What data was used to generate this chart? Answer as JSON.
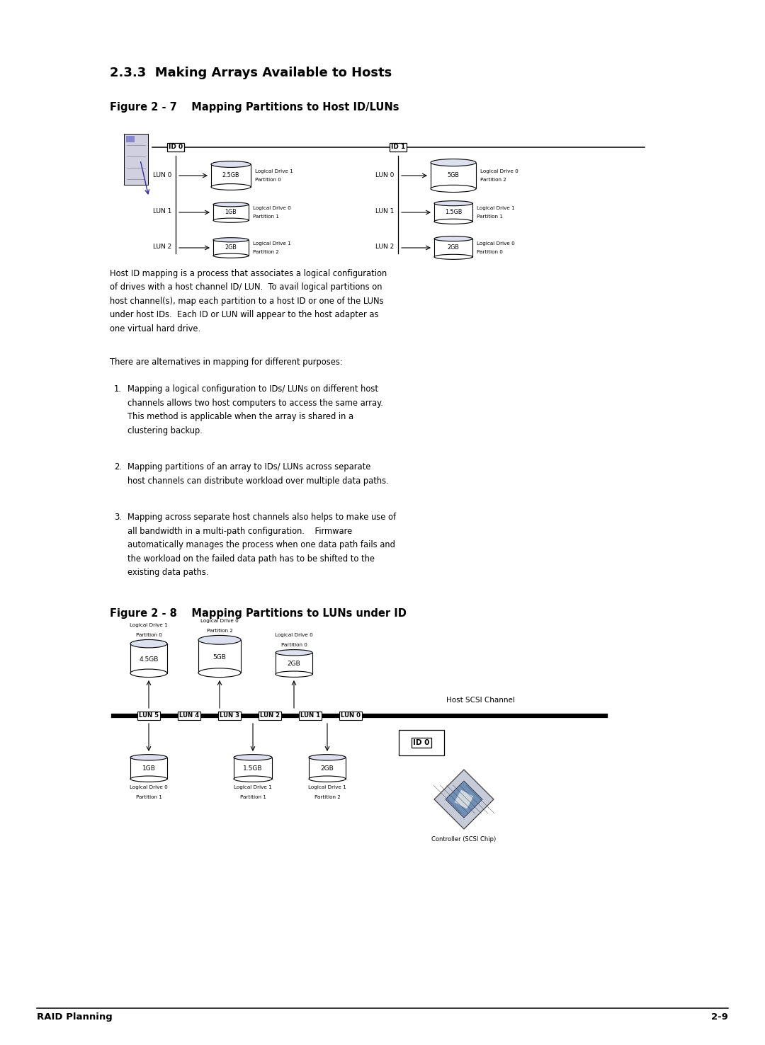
{
  "page_bg": "#ffffff",
  "page_width": 10.8,
  "page_height": 14.76,
  "section_title": "2.3.3  Making Arrays Available to Hosts",
  "fig27_title": "Figure 2 - 7    Mapping Partitions to Host ID/LUNs",
  "fig28_title": "Figure 2 - 8    Mapping Partitions to LUNs under ID",
  "para1_lines": [
    "Host ID mapping is a process that associates a logical configuration",
    "of drives with a host channel ID/ LUN.  To avail logical partitions on",
    "host channel(s), map each partition to a host ID or one of the LUNs",
    "under host IDs.  Each ID or LUN will appear to the host adapter as",
    "one virtual hard drive."
  ],
  "para2": "There are alternatives in mapping for different purposes:",
  "list_item1_lines": [
    "Mapping a logical configuration to IDs/ LUNs on different host",
    "channels allows two host computers to access the same array.",
    "This method is applicable when the array is shared in a",
    "clustering backup."
  ],
  "list_item2_lines": [
    "Mapping partitions of an array to IDs/ LUNs across separate",
    "host channels can distribute workload over multiple data paths."
  ],
  "list_item3_lines": [
    "Mapping across separate host channels also helps to make use of",
    "all bandwidth in a multi-path configuration.    Firmware",
    "automatically manages the process when one data path fails and",
    "the workload on the failed data path has to be shifted to the",
    "existing data paths."
  ],
  "footer_left": "RAID Planning",
  "footer_right": "2-9"
}
